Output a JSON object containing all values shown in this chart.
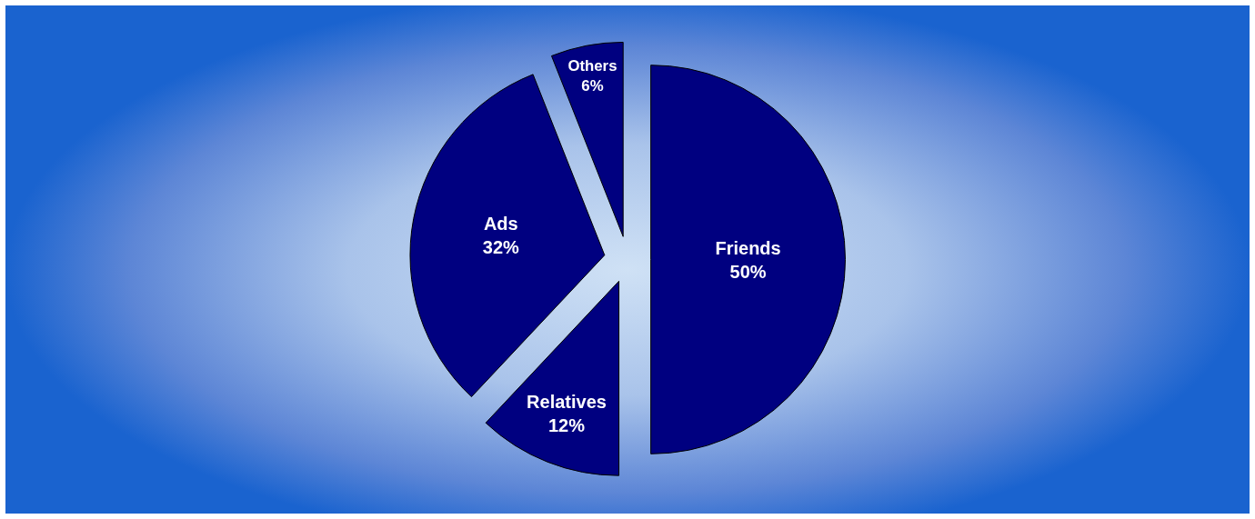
{
  "chart_data": {
    "type": "pie",
    "categories": [
      "Friends",
      "Relatives",
      "Ads",
      "Others"
    ],
    "values": [
      50,
      12,
      32,
      6
    ],
    "value_labels": [
      "50%",
      "12%",
      "32%",
      "6%"
    ],
    "colors": [
      "#000080",
      "#000080",
      "#000080",
      "#000080"
    ],
    "legend": false
  }
}
